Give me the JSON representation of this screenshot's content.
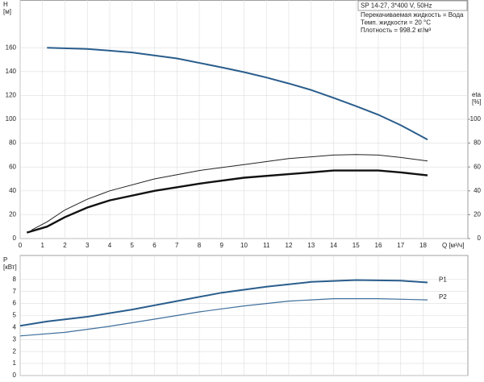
{
  "chart_data": [
    {
      "type": "line",
      "box_title": "SP 14-27, 3*400 V, 50Hz",
      "info": [
        "Перекачиваемая жидкость = Вода",
        "Темп. жидкости = 20 °C",
        "Плотность = 998.2 кг/м³"
      ],
      "y_label": [
        "H",
        "[м]"
      ],
      "y2_label": [
        "eta",
        "[%]"
      ],
      "x_label": "Q [м³/ч]",
      "xlim": [
        0,
        20
      ],
      "xticks": [
        0,
        1,
        2,
        3,
        4,
        5,
        6,
        7,
        8,
        9,
        10,
        11,
        12,
        13,
        14,
        15,
        16,
        17,
        18
      ],
      "ylim": [
        0,
        200
      ],
      "yticks": [
        0,
        20,
        40,
        60,
        80,
        100,
        120,
        140,
        160
      ],
      "y2lim": [
        0,
        200
      ],
      "y2ticks": [
        0,
        20,
        40,
        60,
        80,
        100
      ],
      "grid": true,
      "series": [
        {
          "color": "#2a5d8c",
          "width": 2,
          "x": [
            1.2,
            3,
            5,
            7,
            9,
            10,
            11,
            12,
            13,
            14,
            15,
            16,
            17,
            18,
            18.2
          ],
          "values": [
            160,
            159,
            156,
            151,
            143.5,
            139.5,
            135,
            130,
            124.5,
            118,
            111,
            103.8,
            95,
            85,
            83
          ]
        },
        {
          "color": "#222222",
          "width": 1,
          "axis": "y2",
          "x": [
            0.5,
            1.2,
            2,
            3,
            4,
            6,
            8,
            10,
            12,
            14,
            15,
            16,
            17,
            18.2
          ],
          "values": [
            7,
            14,
            24,
            33,
            40,
            50,
            57,
            62,
            67,
            70,
            70.5,
            70,
            68,
            65
          ]
        },
        {
          "color": "#111111",
          "width": 2.4,
          "axis": "y2",
          "x": [
            0.3,
            1.2,
            2,
            3,
            4,
            6,
            8,
            10,
            12,
            14,
            15,
            16,
            17,
            18.2
          ],
          "values": [
            5,
            10,
            18,
            26,
            32,
            40,
            46,
            51,
            54,
            57,
            57,
            57,
            55.5,
            53
          ]
        }
      ]
    },
    {
      "type": "line",
      "y_label": [
        "P",
        "[кВт]"
      ],
      "xlim": [
        0,
        20
      ],
      "xticks": [
        0,
        1,
        2,
        3,
        4,
        5,
        6,
        7,
        8,
        9,
        10,
        11,
        12,
        13,
        14,
        15,
        16,
        17,
        18
      ],
      "ylim": [
        0,
        10
      ],
      "yticks": [
        0,
        1,
        2,
        3,
        4,
        5,
        6,
        7,
        8
      ],
      "grid": true,
      "series": [
        {
          "name": "P1",
          "color": "#2a5d8c",
          "width": 2,
          "x": [
            0,
            1.2,
            3,
            5,
            7,
            9,
            11,
            13,
            15,
            17,
            18.2
          ],
          "values": [
            4.15,
            4.5,
            4.9,
            5.5,
            6.2,
            6.9,
            7.4,
            7.8,
            7.95,
            7.9,
            7.75
          ]
        },
        {
          "name": "P2",
          "color": "#3f6f9c",
          "width": 1.2,
          "x": [
            0,
            2,
            4,
            6,
            8,
            10,
            12,
            14,
            16,
            18.2
          ],
          "values": [
            3.3,
            3.6,
            4.1,
            4.7,
            5.3,
            5.8,
            6.2,
            6.4,
            6.4,
            6.3
          ]
        }
      ]
    }
  ]
}
